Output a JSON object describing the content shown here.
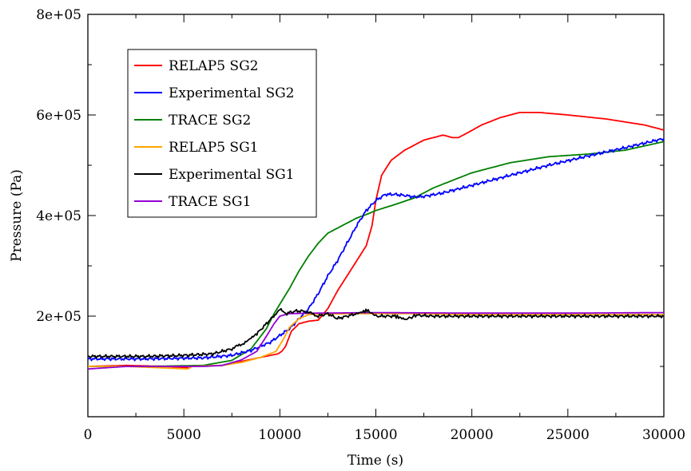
{
  "chart_data": {
    "type": "line",
    "xlabel": "Time (s)",
    "ylabel": "Pressure (Pa)",
    "xlim": [
      0,
      30000
    ],
    "ylim": [
      0,
      800000
    ],
    "x_ticks": [
      0,
      5000,
      10000,
      15000,
      20000,
      25000,
      30000
    ],
    "x_tick_labels": [
      "0",
      "5000",
      "10000",
      "15000",
      "20000",
      "25000",
      "30000"
    ],
    "y_ticks": [
      200000,
      400000,
      600000,
      800000
    ],
    "y_tick_labels": [
      "2e+05",
      "4e+05",
      "6e+05",
      "8e+05"
    ],
    "grid": false,
    "legend_position": "top-left",
    "series": [
      {
        "name": "RELAP5 SG2",
        "color": "#ff0000",
        "points": [
          [
            0,
            100000
          ],
          [
            2000,
            102000
          ],
          [
            4000,
            100000
          ],
          [
            5300,
            97000
          ],
          [
            5400,
            100000
          ],
          [
            7000,
            102000
          ],
          [
            8000,
            110000
          ],
          [
            9000,
            118000
          ],
          [
            9900,
            125000
          ],
          [
            10100,
            130000
          ],
          [
            10300,
            140000
          ],
          [
            10600,
            170000
          ],
          [
            11000,
            185000
          ],
          [
            11500,
            190000
          ],
          [
            12000,
            192000
          ],
          [
            12500,
            215000
          ],
          [
            13000,
            250000
          ],
          [
            13500,
            280000
          ],
          [
            14000,
            310000
          ],
          [
            14500,
            340000
          ],
          [
            14800,
            380000
          ],
          [
            15000,
            430000
          ],
          [
            15300,
            480000
          ],
          [
            15800,
            510000
          ],
          [
            16500,
            530000
          ],
          [
            17000,
            540000
          ],
          [
            17500,
            550000
          ],
          [
            18500,
            560000
          ],
          [
            19000,
            555000
          ],
          [
            19300,
            555000
          ],
          [
            19800,
            565000
          ],
          [
            20500,
            580000
          ],
          [
            21500,
            595000
          ],
          [
            22500,
            605000
          ],
          [
            23500,
            605000
          ],
          [
            25000,
            600000
          ],
          [
            27000,
            592000
          ],
          [
            29000,
            580000
          ],
          [
            30000,
            570000
          ]
        ]
      },
      {
        "name": "Experimental SG2",
        "color": "#0000ff",
        "points": [
          [
            0,
            115000
          ],
          [
            3000,
            115000
          ],
          [
            6000,
            117000
          ],
          [
            7500,
            122000
          ],
          [
            8500,
            132000
          ],
          [
            9500,
            148000
          ],
          [
            10500,
            175000
          ],
          [
            11000,
            195000
          ],
          [
            11500,
            215000
          ],
          [
            12000,
            245000
          ],
          [
            12500,
            280000
          ],
          [
            13000,
            310000
          ],
          [
            13500,
            345000
          ],
          [
            14000,
            380000
          ],
          [
            14500,
            410000
          ],
          [
            15000,
            430000
          ],
          [
            15500,
            442000
          ],
          [
            16000,
            442000
          ],
          [
            16500,
            440000
          ],
          [
            17000,
            437000
          ],
          [
            17500,
            438000
          ],
          [
            18500,
            445000
          ],
          [
            20000,
            460000
          ],
          [
            22000,
            480000
          ],
          [
            24000,
            500000
          ],
          [
            26000,
            518000
          ],
          [
            28000,
            535000
          ],
          [
            30000,
            553000
          ]
        ]
      },
      {
        "name": "TRACE SG2",
        "color": "#008000",
        "points": [
          [
            0,
            100000
          ],
          [
            3000,
            100000
          ],
          [
            6000,
            102000
          ],
          [
            7500,
            112000
          ],
          [
            8500,
            135000
          ],
          [
            9300,
            175000
          ],
          [
            9700,
            205000
          ],
          [
            10100,
            230000
          ],
          [
            10500,
            255000
          ],
          [
            11000,
            290000
          ],
          [
            11500,
            320000
          ],
          [
            12000,
            345000
          ],
          [
            12500,
            365000
          ],
          [
            13000,
            375000
          ],
          [
            13500,
            385000
          ],
          [
            14000,
            395000
          ],
          [
            14500,
            402000
          ],
          [
            15000,
            410000
          ],
          [
            16000,
            422000
          ],
          [
            17000,
            435000
          ],
          [
            18000,
            455000
          ],
          [
            19000,
            470000
          ],
          [
            20000,
            485000
          ],
          [
            22000,
            505000
          ],
          [
            24000,
            517000
          ],
          [
            26000,
            522000
          ],
          [
            28000,
            530000
          ],
          [
            30000,
            547000
          ]
        ]
      },
      {
        "name": "RELAP5 SG1",
        "color": "#ffa500",
        "points": [
          [
            0,
            100000
          ],
          [
            2000,
            100000
          ],
          [
            4000,
            97000
          ],
          [
            5200,
            95000
          ],
          [
            5400,
            100000
          ],
          [
            7000,
            102000
          ],
          [
            8000,
            108000
          ],
          [
            9000,
            118000
          ],
          [
            9800,
            130000
          ],
          [
            10200,
            155000
          ],
          [
            10500,
            178000
          ],
          [
            11000,
            195000
          ],
          [
            11500,
            203000
          ],
          [
            12000,
            204000
          ],
          [
            14000,
            205000
          ],
          [
            17000,
            205000
          ],
          [
            20000,
            203000
          ],
          [
            25000,
            203000
          ],
          [
            30000,
            203000
          ]
        ]
      },
      {
        "name": "Experimental SG1",
        "color": "#000000",
        "points": [
          [
            0,
            120000
          ],
          [
            3000,
            120000
          ],
          [
            5000,
            122000
          ],
          [
            6500,
            125000
          ],
          [
            7500,
            135000
          ],
          [
            8200,
            148000
          ],
          [
            8800,
            165000
          ],
          [
            9300,
            185000
          ],
          [
            9800,
            205000
          ],
          [
            10000,
            215000
          ],
          [
            10300,
            205000
          ],
          [
            10800,
            210000
          ],
          [
            11300,
            210000
          ],
          [
            12000,
            200000
          ],
          [
            12500,
            205000
          ],
          [
            13000,
            195000
          ],
          [
            13500,
            200000
          ],
          [
            14000,
            205000
          ],
          [
            14600,
            212000
          ],
          [
            15000,
            200000
          ],
          [
            16000,
            200000
          ],
          [
            16600,
            193000
          ],
          [
            17000,
            202000
          ],
          [
            18000,
            200000
          ],
          [
            20000,
            200000
          ],
          [
            25000,
            200000
          ],
          [
            30000,
            200000
          ]
        ]
      },
      {
        "name": "TRACE SG1",
        "color": "#9400d3",
        "points": [
          [
            0,
            95000
          ],
          [
            2000,
            100000
          ],
          [
            4000,
            100000
          ],
          [
            6000,
            100000
          ],
          [
            7000,
            102000
          ],
          [
            8000,
            113000
          ],
          [
            8800,
            130000
          ],
          [
            9300,
            160000
          ],
          [
            9700,
            185000
          ],
          [
            10000,
            200000
          ],
          [
            10500,
            205000
          ],
          [
            12000,
            206000
          ],
          [
            15000,
            207000
          ],
          [
            20000,
            206000
          ],
          [
            25000,
            206000
          ],
          [
            30000,
            207000
          ]
        ]
      }
    ]
  }
}
